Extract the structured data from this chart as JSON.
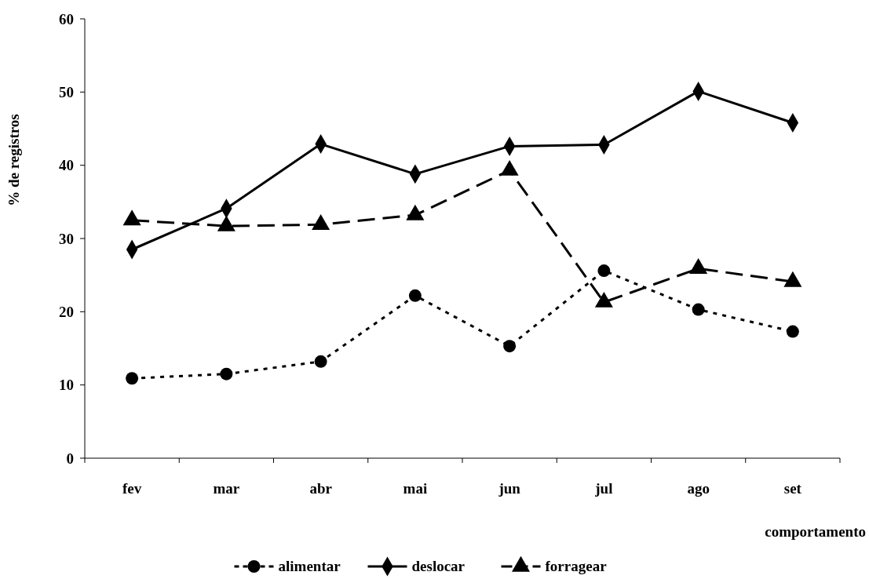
{
  "chart_data": {
    "type": "line",
    "ylabel": "% de registros",
    "xlabel": "comportamento",
    "categories": [
      "fev",
      "mar",
      "abr",
      "mai",
      "jun",
      "jul",
      "ago",
      "set"
    ],
    "ylim": [
      0,
      60
    ],
    "yticks": [
      0,
      10,
      20,
      30,
      40,
      50,
      60
    ],
    "grid": false,
    "legend": "bottom",
    "series": [
      {
        "name": "alimentar",
        "color": "#000000",
        "marker": "circle",
        "line_style": "dotted",
        "values": [
          10.9,
          11.5,
          13.2,
          22.2,
          15.3,
          25.6,
          20.3,
          17.3
        ]
      },
      {
        "name": "deslocar",
        "color": "#000000",
        "marker": "diamond",
        "line_style": "solid",
        "values": [
          28.5,
          34.1,
          42.9,
          38.8,
          42.6,
          42.8,
          50.1,
          45.8
        ]
      },
      {
        "name": "forragear",
        "color": "#000000",
        "marker": "triangle",
        "line_style": "dashed",
        "values": [
          32.5,
          31.7,
          31.9,
          33.2,
          39.3,
          21.3,
          25.9,
          24.1
        ]
      }
    ]
  }
}
